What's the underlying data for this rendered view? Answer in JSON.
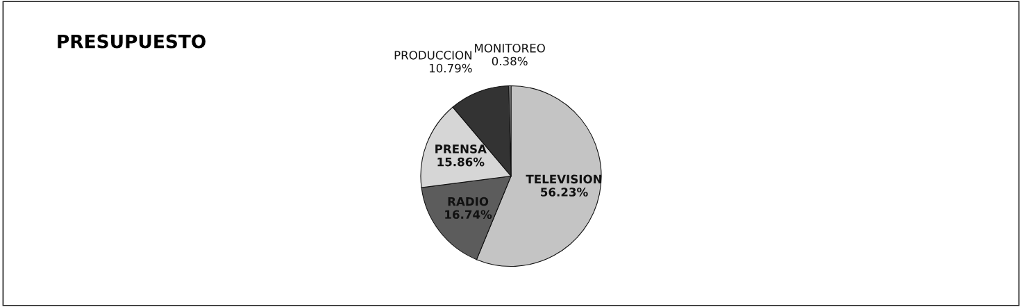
{
  "chart_data": {
    "type": "pie",
    "title": "PRESUPUESTO",
    "categories": [
      "TELEVISION",
      "RADIO",
      "PRENSA",
      "PRODUCCION",
      "MONITOREO"
    ],
    "values": [
      56.23,
      16.74,
      15.86,
      10.79,
      0.38
    ],
    "value_labels": [
      "56.23%",
      "16.74%",
      "15.86%",
      "10.79%",
      "0.38%"
    ],
    "colors": [
      "#c4c4c4",
      "#5c5c5c",
      "#d6d6d6",
      "#333333",
      "#a8a8a8"
    ],
    "legend": false
  }
}
